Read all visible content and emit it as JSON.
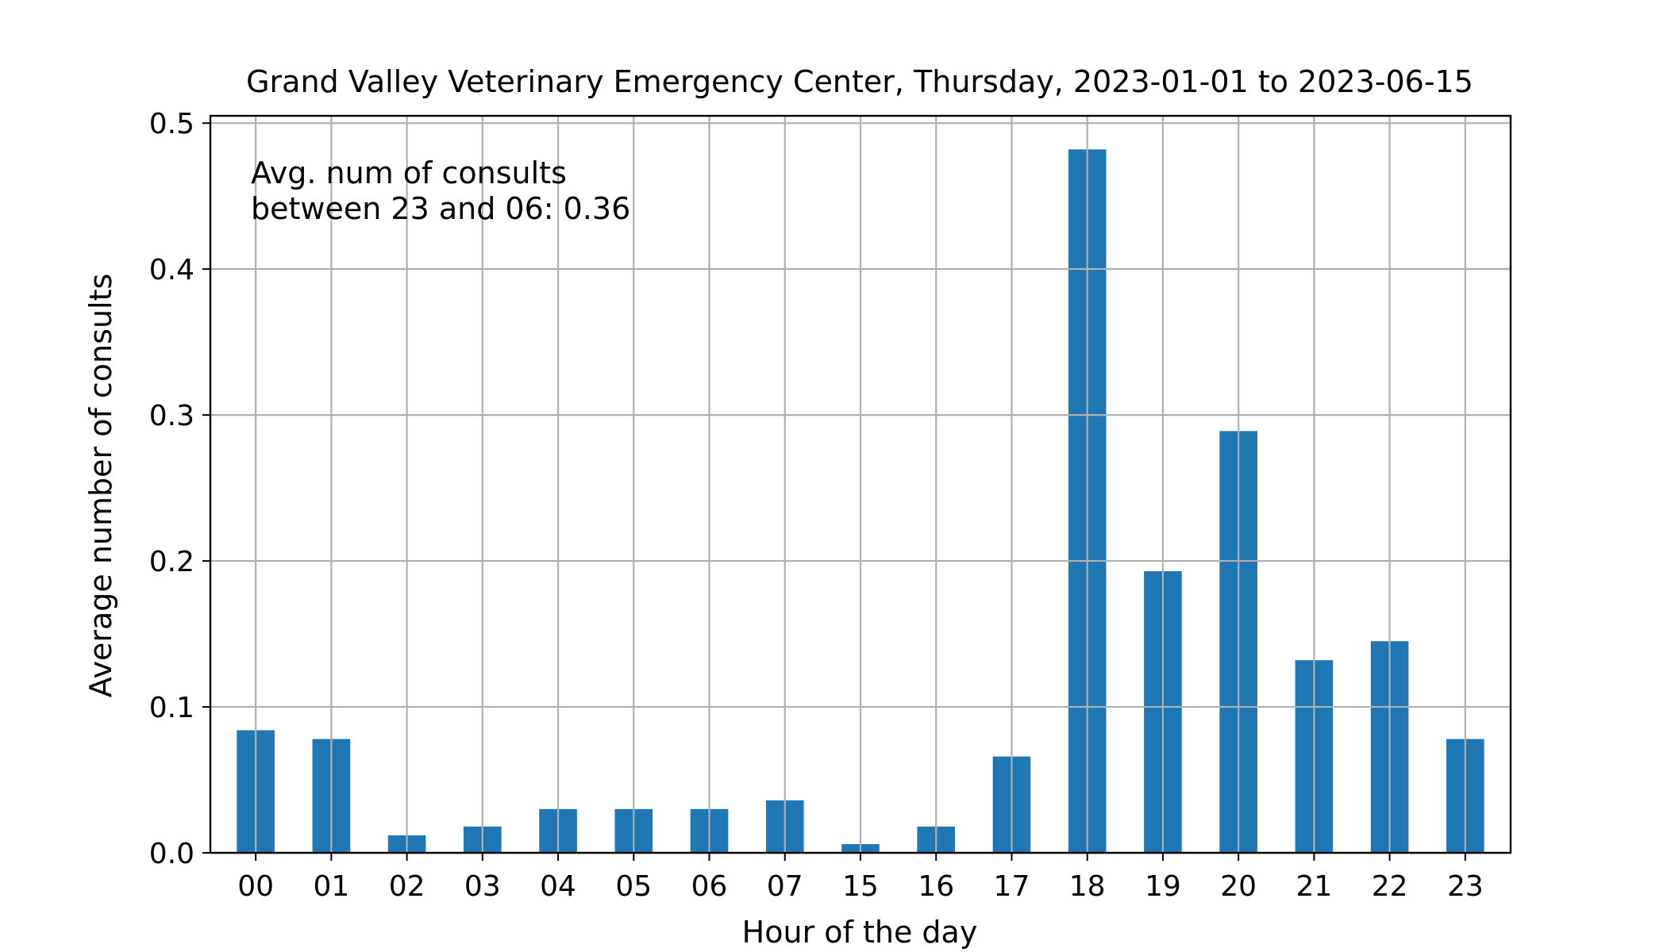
{
  "chart_data": {
    "type": "bar",
    "title": "Grand Valley Veterinary Emergency Center, Thursday, 2023-01-01 to 2023-06-15",
    "xlabel": "Hour of the day",
    "ylabel": "Average number of consults",
    "categories": [
      "00",
      "01",
      "02",
      "03",
      "04",
      "05",
      "06",
      "07",
      "15",
      "16",
      "17",
      "18",
      "19",
      "20",
      "21",
      "22",
      "23"
    ],
    "values": [
      0.084,
      0.078,
      0.012,
      0.018,
      0.03,
      0.03,
      0.03,
      0.036,
      0.006,
      0.018,
      0.066,
      0.482,
      0.193,
      0.289,
      0.132,
      0.145,
      0.078
    ],
    "ylim": [
      0,
      0.505
    ],
    "yticks": [
      0.0,
      0.1,
      0.2,
      0.3,
      0.4,
      0.5
    ],
    "ytick_labels": [
      "0.0",
      "0.1",
      "0.2",
      "0.3",
      "0.4",
      "0.5"
    ],
    "grid": true,
    "bar_color": "#1f77b4",
    "annotation": {
      "line1": "Avg. num of consults",
      "line2": "between 23 and 06: 0.36"
    }
  }
}
